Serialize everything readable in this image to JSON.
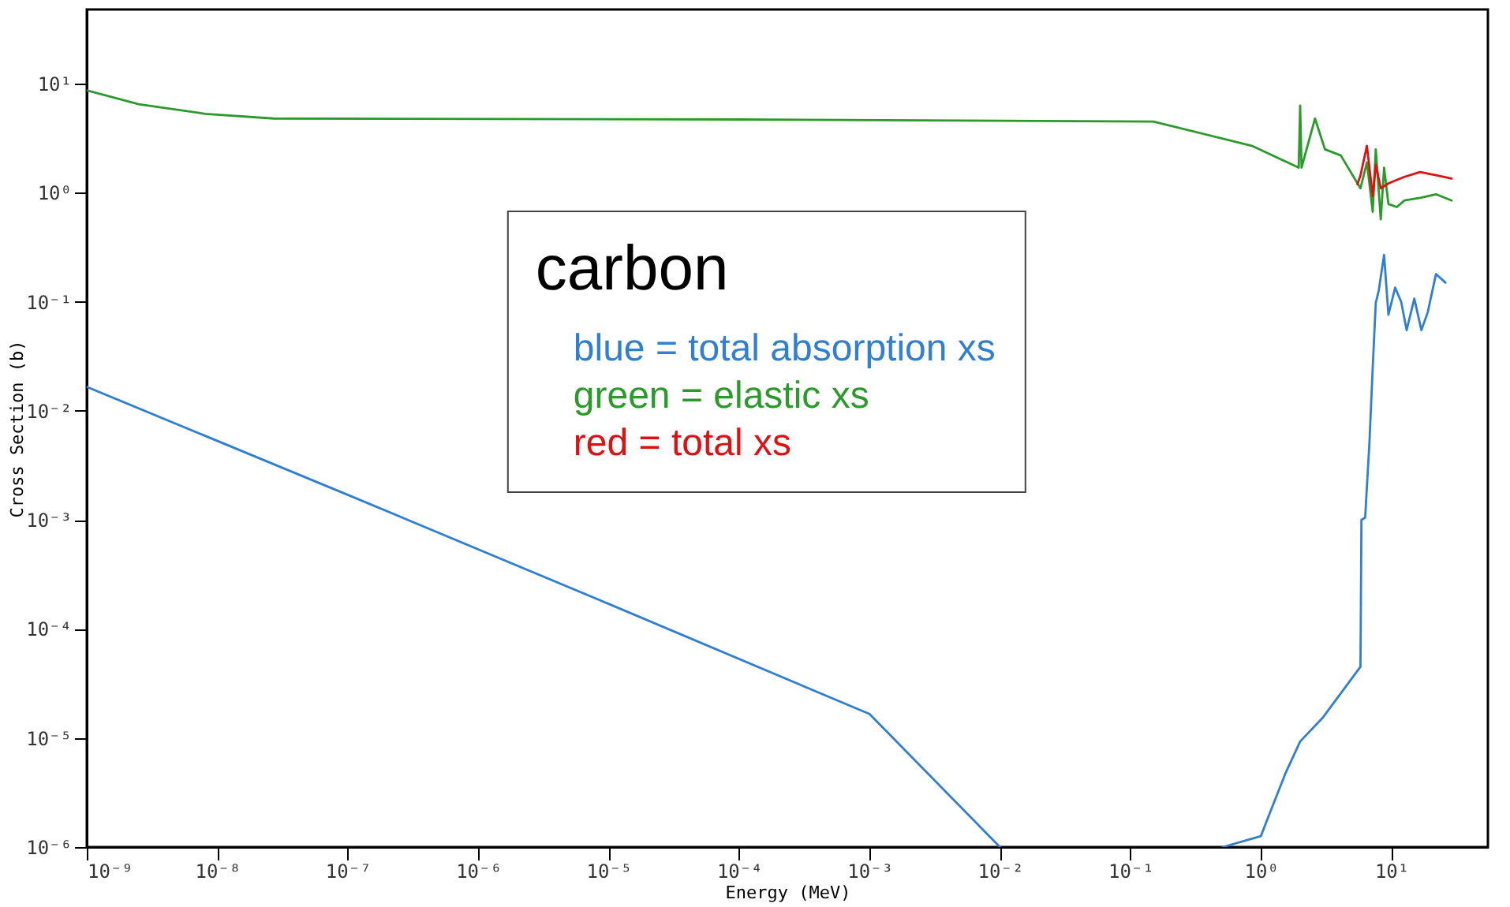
{
  "chart_data": {
    "type": "line",
    "xlabel": "Energy (MeV)",
    "ylabel": "Cross Section (b)",
    "legend_title": "carbon",
    "legend": "top",
    "log": "xy",
    "grid": false,
    "xlim": [
      1e-09,
      55
    ],
    "ylim": [
      1e-06,
      48
    ],
    "xticks": [
      {
        "value": 1e-09,
        "label": "10⁻⁹"
      },
      {
        "value": 1e-08,
        "label": "10⁻⁸"
      },
      {
        "value": 1e-07,
        "label": "10⁻⁷"
      },
      {
        "value": 1e-06,
        "label": "10⁻⁶"
      },
      {
        "value": 1e-05,
        "label": "10⁻⁵"
      },
      {
        "value": 0.0001,
        "label": "10⁻⁴"
      },
      {
        "value": 0.001,
        "label": "10⁻³"
      },
      {
        "value": 0.01,
        "label": "10⁻²"
      },
      {
        "value": 0.1,
        "label": "10⁻¹"
      },
      {
        "value": 1,
        "label": "10⁰"
      },
      {
        "value": 10,
        "label": "10¹"
      }
    ],
    "yticks": [
      {
        "value": 1e-06,
        "label": "10⁻⁶"
      },
      {
        "value": 1e-05,
        "label": "10⁻⁵"
      },
      {
        "value": 0.0001,
        "label": "10⁻⁴"
      },
      {
        "value": 0.001,
        "label": "10⁻³"
      },
      {
        "value": 0.01,
        "label": "10⁻²"
      },
      {
        "value": 0.1,
        "label": "10⁻¹"
      },
      {
        "value": 1,
        "label": "10⁰"
      },
      {
        "value": 10,
        "label": "10¹"
      }
    ],
    "series": [
      {
        "name": "blue = total absorption xs",
        "color": "#2f7fd6",
        "x": [
          1e-09,
          1e-07,
          1e-05,
          0.001,
          0.01,
          0.1,
          0.51,
          1,
          1.18,
          1.55,
          2.0,
          3.0,
          5.8,
          5.9,
          6.3,
          6.8,
          7.2,
          7.6,
          8.0,
          8.8,
          9.5,
          10.7,
          11.9,
          13.1,
          15,
          17,
          19,
          22,
          26
        ],
        "values": [
          0.0166,
          0.0017,
          0.00017,
          1.66e-05,
          1e-06,
          null,
          1e-06,
          1.26e-06,
          2.1e-06,
          4.8e-06,
          9.3e-06,
          1.55e-05,
          4.5e-05,
          0.001,
          0.00105,
          0.0052,
          0.025,
          0.098,
          0.126,
          0.27,
          0.076,
          0.135,
          0.1,
          0.055,
          0.107,
          0.055,
          0.08,
          0.18,
          0.15
        ]
      },
      {
        "name": "green = elastic xs",
        "color": "#2a9a2a",
        "x": [
          1e-09,
          2.5e-09,
          8.1e-09,
          2.7e-08,
          0.0001,
          0.15,
          0.85,
          1.95,
          2.0,
          2.05,
          2.6,
          3.1,
          4.1,
          5.8,
          6.5,
          7.2,
          7.6,
          8.3,
          8.8,
          9.5,
          11,
          12.6,
          16.6,
          22,
          29
        ],
        "values": [
          8.7,
          6.5,
          5.3,
          4.8,
          4.7,
          4.5,
          2.7,
          1.7,
          6.3,
          1.7,
          4.8,
          2.5,
          2.2,
          1.1,
          1.9,
          0.67,
          2.5,
          0.57,
          1.7,
          0.79,
          0.74,
          0.85,
          0.9,
          0.97,
          0.85
        ]
      },
      {
        "name": "red = total xs",
        "color": "#e01010",
        "x": [
          5.5,
          5.8,
          6.5,
          7.2,
          7.6,
          8.3,
          9.5,
          12.6,
          16.6,
          22,
          29
        ],
        "values": [
          1.2,
          1.44,
          2.7,
          0.93,
          1.8,
          1.1,
          1.22,
          1.4,
          1.55,
          1.45,
          1.35
        ]
      }
    ]
  }
}
